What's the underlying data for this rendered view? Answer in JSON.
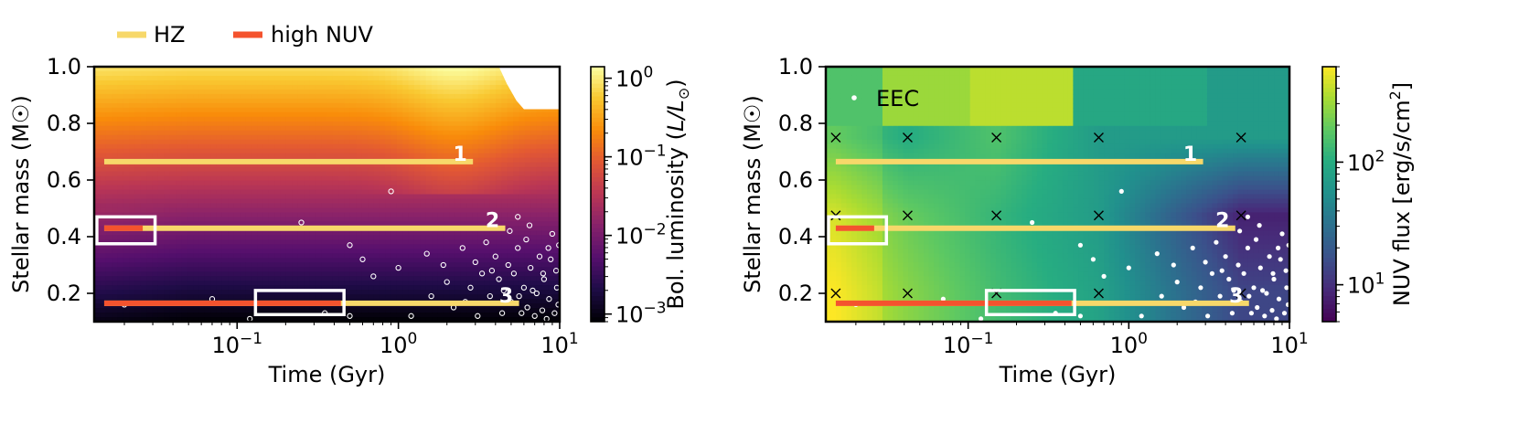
{
  "legend": {
    "hz_label": "HZ",
    "nuv_label": "high NUV",
    "hz_color": "#f7d86a",
    "nuv_color": "#f4532e"
  },
  "chart_data": [
    {
      "type": "heatmap",
      "title": "",
      "xlabel": "Time (Gyr)",
      "ylabel": "Stellar mass (M☉)",
      "xscale": "log",
      "xlim": [
        0.013,
        10
      ],
      "ylim": [
        0.1,
        1.0
      ],
      "x_ticks": [
        {
          "value": 0.1,
          "base": "10",
          "exp": "−1"
        },
        {
          "value": 1,
          "base": "10",
          "exp": "0"
        },
        {
          "value": 10,
          "base": "10",
          "exp": "1"
        }
      ],
      "y_ticks": [
        {
          "value": 0.2,
          "label": "0.2"
        },
        {
          "value": 0.4,
          "label": "0.4"
        },
        {
          "value": 0.6,
          "label": "0.6"
        },
        {
          "value": 0.8,
          "label": "0.8"
        },
        {
          "value": 1.0,
          "label": "1.0"
        }
      ],
      "colorbar": {
        "label_prefix": "Bol. luminosity (",
        "label_math": "L/L",
        "label_suffix": ")",
        "scale": "log",
        "range": [
          0.0008,
          1.4
        ],
        "ticks": [
          {
            "value": 0.001,
            "base": "10",
            "exp": "−3"
          },
          {
            "value": 0.01,
            "base": "10",
            "exp": "−2"
          },
          {
            "value": 0.1,
            "base": "10",
            "exp": "−1"
          },
          {
            "value": 1,
            "base": "10",
            "exp": "0"
          }
        ],
        "colormap": "inferno"
      },
      "tracks": [
        {
          "id": "1",
          "mass": 0.665,
          "hz_range": [
            0.015,
            2.9
          ],
          "nuv_range": null
        },
        {
          "id": "2",
          "mass": 0.43,
          "hz_range": [
            0.015,
            4.6
          ],
          "nuv_range": [
            0.015,
            0.026
          ]
        },
        {
          "id": "3",
          "mass": 0.165,
          "hz_range": [
            0.015,
            5.6
          ],
          "nuv_range": [
            0.015,
            0.44
          ]
        }
      ],
      "boxes": [
        {
          "t_range": [
            0.0135,
            0.031
          ],
          "m_range": [
            0.375,
            0.47
          ]
        },
        {
          "t_range": [
            0.13,
            0.46
          ],
          "m_range": [
            0.125,
            0.21
          ]
        }
      ],
      "point_style": "hollow",
      "points": [
        [
          0.02,
          0.16
        ],
        [
          0.07,
          0.18
        ],
        [
          0.9,
          0.56
        ],
        [
          0.25,
          0.45
        ],
        [
          0.5,
          0.37
        ],
        [
          0.6,
          0.32
        ],
        [
          0.7,
          0.26
        ],
        [
          1.0,
          0.29
        ],
        [
          1.5,
          0.34
        ],
        [
          1.9,
          0.3
        ],
        [
          2.0,
          0.24
        ],
        [
          2.5,
          0.36
        ],
        [
          2.8,
          0.22
        ],
        [
          3.0,
          0.31
        ],
        [
          3.3,
          0.27
        ],
        [
          3.5,
          0.38
        ],
        [
          3.7,
          0.19
        ],
        [
          4.0,
          0.33
        ],
        [
          4.2,
          0.25
        ],
        [
          4.5,
          0.21
        ],
        [
          4.8,
          0.3
        ],
        [
          5.0,
          0.17
        ],
        [
          5.2,
          0.27
        ],
        [
          5.5,
          0.36
        ],
        [
          5.8,
          0.13
        ],
        [
          6.0,
          0.22
        ],
        [
          6.3,
          0.15
        ],
        [
          6.6,
          0.29
        ],
        [
          7.0,
          0.12
        ],
        [
          7.2,
          0.2
        ],
        [
          7.5,
          0.33
        ],
        [
          7.8,
          0.14
        ],
        [
          8.0,
          0.25
        ],
        [
          8.3,
          0.11
        ],
        [
          8.6,
          0.18
        ],
        [
          9.0,
          0.41
        ],
        [
          9.3,
          0.13
        ],
        [
          9.6,
          0.22
        ],
        [
          8.8,
          0.32
        ],
        [
          9.5,
          0.28
        ],
        [
          1.2,
          0.12
        ],
        [
          2.2,
          0.15
        ],
        [
          3.1,
          0.12
        ],
        [
          4.4,
          0.13
        ],
        [
          5.6,
          0.19
        ],
        [
          6.8,
          0.21
        ],
        [
          7.9,
          0.27
        ],
        [
          9.8,
          0.16
        ],
        [
          9.9,
          0.37
        ],
        [
          4.9,
          0.42
        ],
        [
          5.5,
          0.47
        ],
        [
          6.5,
          0.44
        ],
        [
          0.12,
          0.11
        ],
        [
          0.35,
          0.13
        ],
        [
          0.5,
          0.12
        ],
        [
          1.6,
          0.19
        ],
        [
          2.6,
          0.17
        ],
        [
          3.8,
          0.28
        ],
        [
          6.2,
          0.39
        ],
        [
          8.5,
          0.36
        ]
      ],
      "max_age_edge": [
        [
          4.2,
          1.0
        ],
        [
          4.7,
          0.94
        ],
        [
          5.4,
          0.88
        ],
        [
          6.0,
          0.85
        ]
      ]
    },
    {
      "type": "heatmap",
      "title": "",
      "xlabel": "Time (Gyr)",
      "ylabel": "Stellar mass (M☉)",
      "xscale": "log",
      "xlim": [
        0.013,
        10
      ],
      "ylim": [
        0.1,
        1.0
      ],
      "x_ticks": [
        {
          "value": 0.1,
          "base": "10",
          "exp": "−1"
        },
        {
          "value": 1,
          "base": "10",
          "exp": "0"
        },
        {
          "value": 10,
          "base": "10",
          "exp": "1"
        }
      ],
      "y_ticks": [
        {
          "value": 0.2,
          "label": "0.2"
        },
        {
          "value": 0.4,
          "label": "0.4"
        },
        {
          "value": 0.6,
          "label": "0.6"
        },
        {
          "value": 0.8,
          "label": "0.8"
        },
        {
          "value": 1.0,
          "label": "1.0"
        }
      ],
      "colorbar": {
        "label": "NUV flux [erg/s/cm",
        "label_sup": "2",
        "label_end": "]",
        "scale": "log",
        "range": [
          5,
          600
        ],
        "ticks": [
          {
            "value": 10,
            "base": "10",
            "exp": "1"
          },
          {
            "value": 100,
            "base": "10",
            "exp": "2"
          }
        ],
        "colormap": "viridis"
      },
      "grid_times": [
        0.015,
        0.042,
        0.15,
        0.65,
        5.0
      ],
      "grid_masses": [
        0.75,
        0.475,
        0.2
      ],
      "grid_flux": [
        [
          160,
          100,
          160,
          70,
          70
        ],
        [
          380,
          200,
          120,
          70,
          8
        ],
        [
          500,
          260,
          140,
          80,
          14
        ]
      ],
      "upper_flux": [
        160,
        300,
        380,
        90,
        70
      ],
      "points_label": "EEC",
      "point_style": "filled",
      "tracks": [
        {
          "id": "1",
          "mass": 0.665,
          "hz_range": [
            0.015,
            2.9
          ],
          "nuv_range": null
        },
        {
          "id": "2",
          "mass": 0.43,
          "hz_range": [
            0.015,
            4.6
          ],
          "nuv_range": [
            0.015,
            0.026
          ]
        },
        {
          "id": "3",
          "mass": 0.165,
          "hz_range": [
            0.015,
            5.6
          ],
          "nuv_range": [
            0.015,
            0.44
          ]
        }
      ],
      "boxes": [
        {
          "t_range": [
            0.0135,
            0.031
          ],
          "m_range": [
            0.375,
            0.47
          ]
        },
        {
          "t_range": [
            0.13,
            0.46
          ],
          "m_range": [
            0.125,
            0.21
          ]
        }
      ],
      "points": [
        [
          0.02,
          0.16
        ],
        [
          0.07,
          0.18
        ],
        [
          0.9,
          0.56
        ],
        [
          0.25,
          0.45
        ],
        [
          0.5,
          0.37
        ],
        [
          0.6,
          0.32
        ],
        [
          0.7,
          0.26
        ],
        [
          1.0,
          0.29
        ],
        [
          1.5,
          0.34
        ],
        [
          1.9,
          0.3
        ],
        [
          2.0,
          0.24
        ],
        [
          2.5,
          0.36
        ],
        [
          2.8,
          0.22
        ],
        [
          3.0,
          0.31
        ],
        [
          3.3,
          0.27
        ],
        [
          3.5,
          0.38
        ],
        [
          3.7,
          0.19
        ],
        [
          4.0,
          0.33
        ],
        [
          4.2,
          0.25
        ],
        [
          4.5,
          0.21
        ],
        [
          4.8,
          0.3
        ],
        [
          5.0,
          0.17
        ],
        [
          5.2,
          0.27
        ],
        [
          5.5,
          0.36
        ],
        [
          5.8,
          0.13
        ],
        [
          6.0,
          0.22
        ],
        [
          6.3,
          0.15
        ],
        [
          6.6,
          0.29
        ],
        [
          7.0,
          0.12
        ],
        [
          7.2,
          0.2
        ],
        [
          7.5,
          0.33
        ],
        [
          7.8,
          0.14
        ],
        [
          8.0,
          0.25
        ],
        [
          8.3,
          0.11
        ],
        [
          8.6,
          0.18
        ],
        [
          9.0,
          0.41
        ],
        [
          9.3,
          0.13
        ],
        [
          9.6,
          0.22
        ],
        [
          8.8,
          0.32
        ],
        [
          9.5,
          0.28
        ],
        [
          1.2,
          0.12
        ],
        [
          2.2,
          0.15
        ],
        [
          3.1,
          0.12
        ],
        [
          4.4,
          0.13
        ],
        [
          5.6,
          0.19
        ],
        [
          6.8,
          0.21
        ],
        [
          7.9,
          0.27
        ],
        [
          9.8,
          0.16
        ],
        [
          9.9,
          0.37
        ],
        [
          4.9,
          0.42
        ],
        [
          5.5,
          0.47
        ],
        [
          6.5,
          0.44
        ],
        [
          0.12,
          0.11
        ],
        [
          0.35,
          0.13
        ],
        [
          0.5,
          0.12
        ],
        [
          1.6,
          0.19
        ],
        [
          2.6,
          0.17
        ],
        [
          3.8,
          0.28
        ],
        [
          6.2,
          0.39
        ],
        [
          8.5,
          0.36
        ]
      ]
    }
  ]
}
